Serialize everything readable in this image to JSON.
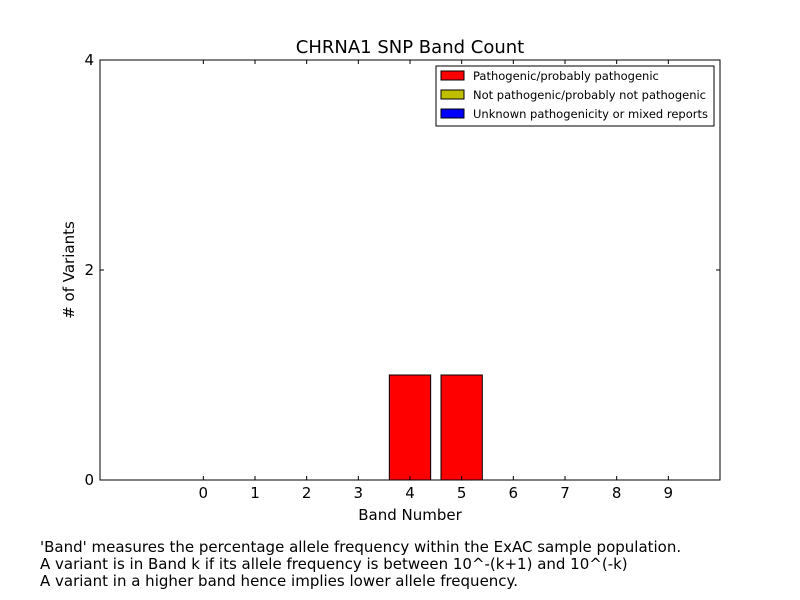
{
  "chart_data": {
    "type": "bar",
    "title": "CHRNA1 SNP Band Count",
    "xlabel": "Band Number",
    "ylabel": "# of Variants",
    "categories": [
      "0",
      "1",
      "2",
      "3",
      "4",
      "5",
      "6",
      "7",
      "8",
      "9"
    ],
    "x_range": [
      -2,
      10
    ],
    "ylim": [
      0,
      4
    ],
    "y_ticks": [
      "0",
      "2",
      "4"
    ],
    "stacked": true,
    "grid": false,
    "legend_position": "top-right",
    "series": [
      {
        "name": "Pathogenic/probably pathogenic",
        "color": "#ff0000",
        "values": [
          0,
          0,
          0,
          0,
          1,
          1,
          0,
          0,
          0,
          0
        ]
      },
      {
        "name": "Not pathogenic/probably not pathogenic",
        "color": "#bfbf00",
        "values": [
          0,
          0,
          0,
          0,
          0,
          0,
          0,
          0,
          0,
          0
        ]
      },
      {
        "name": "Unknown pathogenicity or mixed reports",
        "color": "#0000ff",
        "values": [
          0,
          0,
          0,
          0,
          0,
          0,
          0,
          0,
          0,
          0
        ]
      }
    ]
  },
  "footnote": {
    "line1": "'Band' measures the percentage allele frequency within the ExAC sample population.",
    "line2": "A variant is in Band k if its allele frequency is between 10^-(k+1) and 10^(-k)",
    "line3": "A variant in a higher band hence implies lower allele frequency."
  }
}
